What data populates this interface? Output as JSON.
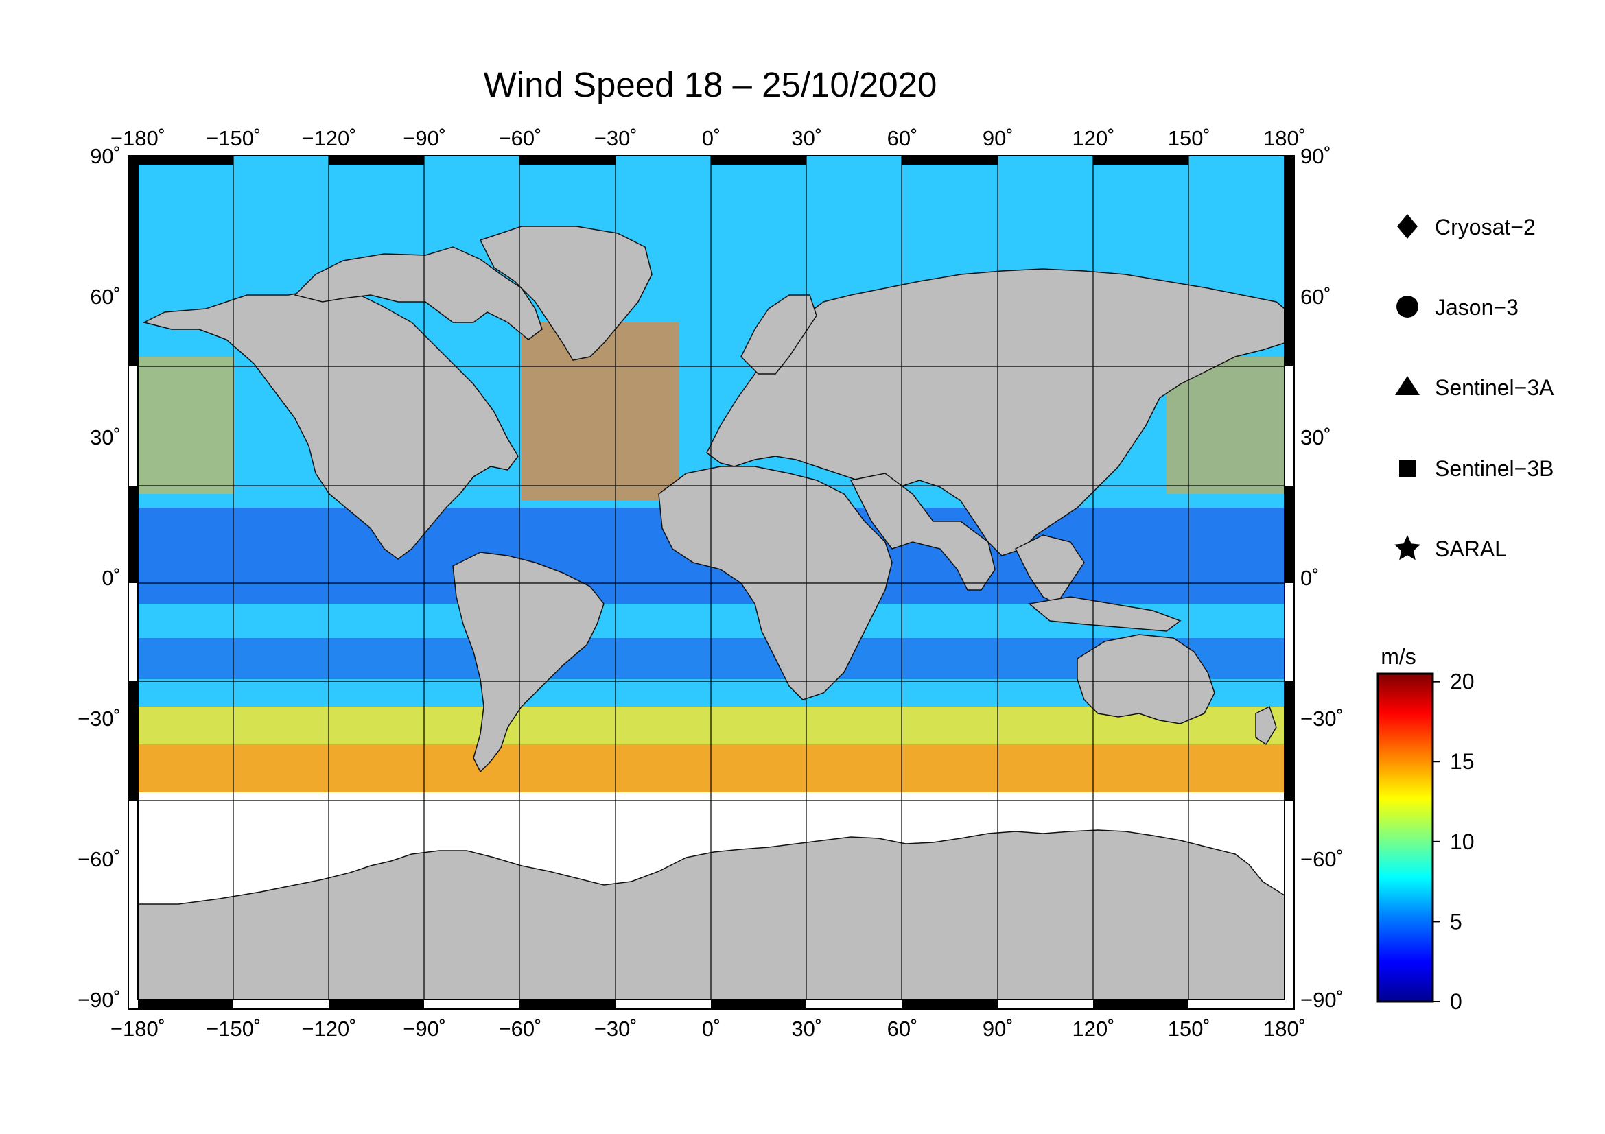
{
  "map": {
    "title": "Wind Speed 18 – 25/10/2020",
    "projection": "equirectangular",
    "lon_range": [
      -180,
      180
    ],
    "lat_range": [
      -90,
      90
    ],
    "lon_ticks": [
      "−180˚",
      "−150˚",
      "−120˚",
      "−90˚",
      "−60˚",
      "−30˚",
      "0˚",
      "30˚",
      "60˚",
      "90˚",
      "120˚",
      "150˚",
      "180˚"
    ],
    "lat_ticks_left": [
      "90˚",
      "60˚",
      "30˚",
      "0˚",
      "−30˚",
      "−60˚",
      "−90˚"
    ],
    "lat_ticks_right": [
      "90˚",
      "60˚",
      "30˚",
      "0˚",
      "−30˚",
      "−60˚",
      "−90˚"
    ],
    "grid": true,
    "land_color": "#bdbdbd",
    "ice_color": "#ffffff",
    "frame_color": "#000000"
  },
  "legend": {
    "placement": "right",
    "items": [
      {
        "symbol": "diamond",
        "label": "Cryosat−2"
      },
      {
        "symbol": "circle",
        "label": "Jason−3"
      },
      {
        "symbol": "triangle",
        "label": "Sentinel−3A"
      },
      {
        "symbol": "square",
        "label": "Sentinel−3B"
      },
      {
        "symbol": "star",
        "label": "SARAL"
      }
    ]
  },
  "colorbar": {
    "unit": "m/s",
    "min": 0,
    "max": 20.5,
    "ticks": [
      "20",
      "15",
      "10",
      "5",
      "0"
    ],
    "tick_values": [
      20,
      15,
      10,
      5,
      0
    ],
    "colors": [
      "#00008f",
      "#0000ff",
      "#0080ff",
      "#00ffff",
      "#80ff80",
      "#ffff00",
      "#ff8000",
      "#ff0000",
      "#800000"
    ]
  }
}
